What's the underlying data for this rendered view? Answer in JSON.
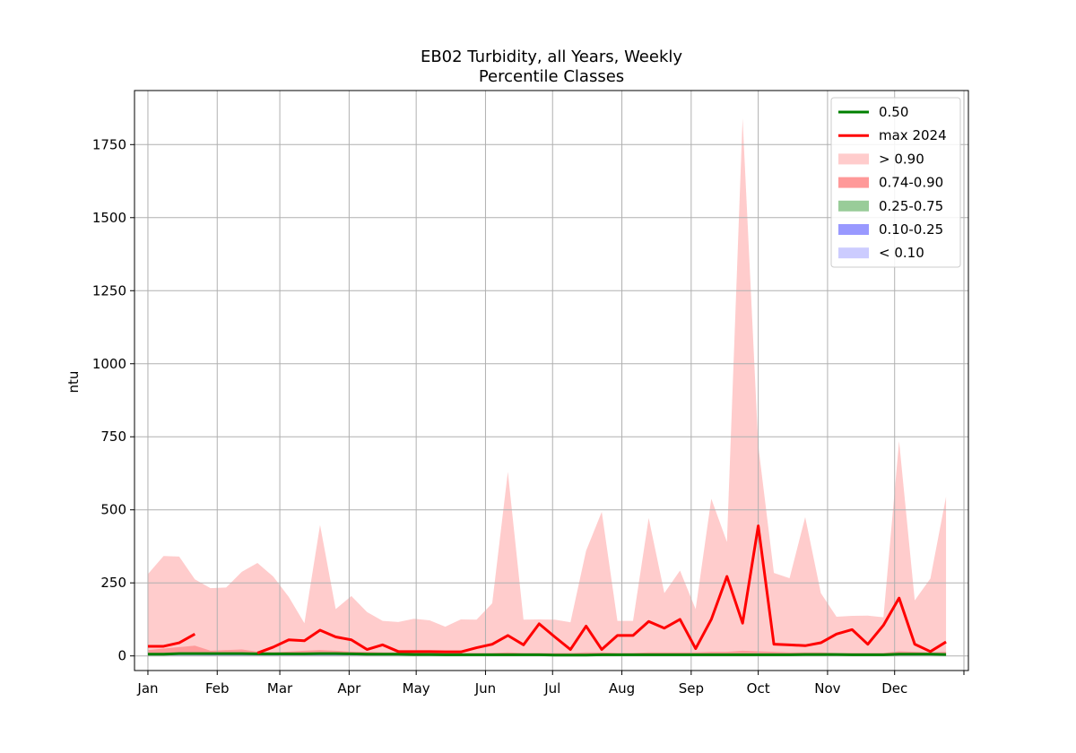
{
  "chart_data": {
    "type": "area",
    "title": "EB02 Turbidity, all Years, Weekly",
    "subtitle": "Percentile Classes",
    "xlabel": "",
    "ylabel": "ntu",
    "x_unit": "week",
    "xlim": [
      -6,
      367
    ],
    "ylim": [
      -50,
      1935
    ],
    "x_ticks": [
      0,
      31,
      59,
      90,
      120,
      151,
      181,
      212,
      243,
      273,
      304,
      334,
      365
    ],
    "x_tick_labels": [
      "Jan",
      "Feb",
      "Mar",
      "Apr",
      "May",
      "Jun",
      "Jul",
      "Aug",
      "Sep",
      "Oct",
      "Nov",
      "Dec",
      ""
    ],
    "y_ticks": [
      0,
      250,
      500,
      750,
      1000,
      1250,
      1500,
      1750
    ],
    "y_tick_labels": [
      "0",
      "250",
      "500",
      "750",
      "1000",
      "1250",
      "1500",
      "1750"
    ],
    "grid": true,
    "legend_position": "top-right",
    "legend": [
      {
        "label": "0.50",
        "kind": "line",
        "color": "#008000"
      },
      {
        "label": "max 2024",
        "kind": "line",
        "color": "#ff0000"
      },
      {
        "label": "> 0.90",
        "kind": "patch",
        "color": "#ffcccc"
      },
      {
        "label": "0.74-0.90",
        "kind": "patch",
        "color": "#ff9999"
      },
      {
        "label": "0.25-0.75",
        "kind": "patch",
        "color": "#99cc99"
      },
      {
        "label": "0.10-0.25",
        "kind": "patch",
        "color": "#9999ff"
      },
      {
        "label": "< 0.10",
        "kind": "patch",
        "color": "#ccccff"
      }
    ],
    "x": [
      0,
      7,
      14,
      21,
      28,
      35,
      42,
      49,
      56,
      63,
      70,
      77,
      84,
      91,
      98,
      105,
      112,
      119,
      126,
      133,
      140,
      147,
      154,
      161,
      168,
      175,
      182,
      189,
      196,
      203,
      210,
      217,
      224,
      231,
      238,
      245,
      252,
      259,
      266,
      273,
      280,
      287,
      294,
      301,
      308,
      315,
      322,
      329,
      336,
      343,
      350,
      357
    ],
    "bands": [
      {
        "name": "> 0.90",
        "color": "#ffcccc",
        "upper": [
          280,
          342,
          340,
          262,
          232,
          234,
          288,
          318,
          272,
          202,
          112,
          448,
          160,
          205,
          150,
          120,
          116,
          127,
          122,
          100,
          125,
          124,
          180,
          630,
          124,
          125,
          124,
          115,
          360,
          493,
          120,
          120,
          472,
          215,
          292,
          160,
          538,
          390,
          1840,
          720,
          284,
          266,
          475,
          215,
          134,
          137,
          138,
          132,
          735,
          190,
          265,
          545
        ]
      },
      {
        "name": "0.74-0.90",
        "color": "#ff9999",
        "upper": [
          20,
          25,
          30,
          35,
          18,
          20,
          22,
          15,
          12,
          15,
          18,
          20,
          18,
          15,
          14,
          12,
          12,
          12,
          10,
          10,
          10,
          10,
          10,
          12,
          10,
          10,
          10,
          10,
          12,
          12,
          10,
          10,
          12,
          12,
          12,
          12,
          14,
          14,
          18,
          16,
          14,
          12,
          12,
          12,
          10,
          10,
          10,
          10,
          16,
          14,
          12,
          14
        ]
      },
      {
        "name": "0.25-0.75",
        "color": "#99cc99",
        "upper": [
          9,
          10,
          11,
          11,
          10,
          10,
          10,
          9,
          9,
          9,
          9,
          10,
          10,
          9,
          8,
          8,
          8,
          7,
          7,
          7,
          7,
          6,
          6,
          6,
          6,
          6,
          5,
          5,
          6,
          6,
          6,
          6,
          6,
          6,
          6,
          6,
          6,
          6,
          7,
          7,
          7,
          7,
          7,
          6,
          6,
          6,
          6,
          6,
          8,
          8,
          8,
          7
        ]
      },
      {
        "name": "0.10-0.25",
        "color": "#9999ff",
        "upper": [
          4,
          4,
          5,
          5,
          4,
          4,
          4,
          4,
          4,
          4,
          4,
          4,
          4,
          4,
          3,
          3,
          3,
          3,
          3,
          3,
          3,
          3,
          3,
          3,
          3,
          3,
          2,
          2,
          3,
          3,
          3,
          3,
          3,
          3,
          3,
          3,
          3,
          3,
          3,
          3,
          3,
          3,
          3,
          3,
          3,
          3,
          3,
          3,
          4,
          4,
          4,
          3
        ]
      },
      {
        "name": "< 0.10",
        "color": "#ccccff",
        "upper": [
          2,
          2,
          3,
          3,
          2,
          2,
          2,
          2,
          2,
          2,
          2,
          2,
          2,
          2,
          2,
          2,
          2,
          2,
          2,
          2,
          2,
          2,
          2,
          2,
          2,
          2,
          1,
          1,
          2,
          2,
          2,
          2,
          2,
          2,
          2,
          2,
          2,
          2,
          2,
          2,
          2,
          2,
          2,
          2,
          2,
          2,
          2,
          2,
          2,
          2,
          2,
          2
        ]
      }
    ],
    "series": [
      {
        "name": "0.50",
        "color": "#008000",
        "values": [
          6,
          6,
          8,
          8,
          8,
          8,
          8,
          7,
          7,
          7,
          7,
          8,
          8,
          7,
          6,
          6,
          6,
          5,
          5,
          4,
          4,
          4,
          4,
          4,
          4,
          4,
          3,
          3,
          3,
          4,
          4,
          4,
          4,
          4,
          4,
          4,
          4,
          4,
          4,
          4,
          4,
          4,
          5,
          5,
          5,
          4,
          4,
          4,
          6,
          6,
          6,
          5
        ]
      },
      {
        "name": "max 2024",
        "color": "#ff0000",
        "values": [
          33,
          33,
          45,
          75,
          null,
          null,
          null,
          10,
          30,
          55,
          52,
          88,
          65,
          55,
          22,
          38,
          15,
          15,
          15,
          14,
          14,
          28,
          40,
          70,
          38,
          110,
          65,
          22,
          102,
          22,
          70,
          70,
          118,
          95,
          125,
          25,
          125,
          272,
          112,
          445,
          40,
          38,
          35,
          45,
          75,
          90,
          40,
          105,
          198,
          40,
          15,
          48
        ]
      }
    ]
  }
}
